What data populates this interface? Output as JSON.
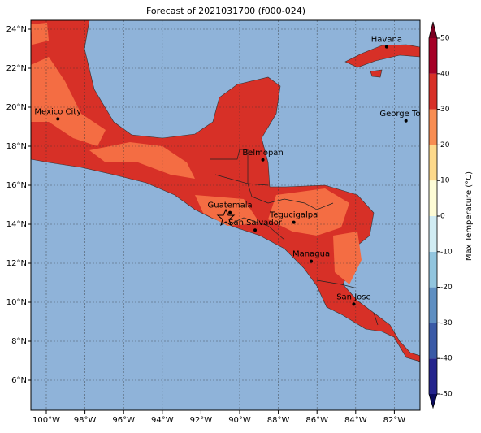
{
  "map": {
    "title": "Forecast of 2021031700 (f000-024)",
    "lon_ticks": [
      {
        "value": -100,
        "label": "100°W"
      },
      {
        "value": -98,
        "label": "98°W"
      },
      {
        "value": -96,
        "label": "96°W"
      },
      {
        "value": -94,
        "label": "94°W"
      },
      {
        "value": -92,
        "label": "92°W"
      },
      {
        "value": -90,
        "label": "90°W"
      },
      {
        "value": -88,
        "label": "88°W"
      },
      {
        "value": -86,
        "label": "86°W"
      },
      {
        "value": -84,
        "label": "84°W"
      },
      {
        "value": -82,
        "label": "82°W"
      }
    ],
    "lat_ticks": [
      {
        "value": 6,
        "label": "6°N"
      },
      {
        "value": 8,
        "label": "8°N"
      },
      {
        "value": 10,
        "label": "10°N"
      },
      {
        "value": 12,
        "label": "12°N"
      },
      {
        "value": 14,
        "label": "14°N"
      },
      {
        "value": 16,
        "label": "16°N"
      },
      {
        "value": 18,
        "label": "18°N"
      },
      {
        "value": 20,
        "label": "20°N"
      },
      {
        "value": 22,
        "label": "22°N"
      },
      {
        "value": 24,
        "label": "24°N"
      }
    ],
    "cities": [
      {
        "name": "Mexico City",
        "lon": -99.4,
        "lat": 19.4
      },
      {
        "name": "Havana",
        "lon": -82.4,
        "lat": 23.1
      },
      {
        "name": "George Town",
        "lon": -81.4,
        "lat": 19.3
      },
      {
        "name": "Belmopan",
        "lon": -88.8,
        "lat": 17.3
      },
      {
        "name": "Guatemala",
        "lon": -90.5,
        "lat": 14.6
      },
      {
        "name": "San Salvador",
        "lon": -89.2,
        "lat": 13.7
      },
      {
        "name": "Tegucigalpa",
        "lon": -87.2,
        "lat": 14.1
      },
      {
        "name": "Managua",
        "lon": -86.3,
        "lat": 12.1
      },
      {
        "name": "San Jose",
        "lon": -84.1,
        "lat": 9.9
      }
    ],
    "colorbar": {
      "label": "Max Temperature (°C)",
      "ticks": [
        -50,
        -40,
        -30,
        -20,
        -10,
        0,
        10,
        20,
        30,
        40,
        50
      ],
      "colors": [
        "#24248c",
        "#3a5aa6",
        "#5f8fc2",
        "#92c5de",
        "#d1ecf3",
        "#fefcd6",
        "#fdd98b",
        "#f88d52",
        "#d73027",
        "#a50026"
      ],
      "under_color": "#0b0b5c",
      "over_color": "#7a0020"
    }
  }
}
